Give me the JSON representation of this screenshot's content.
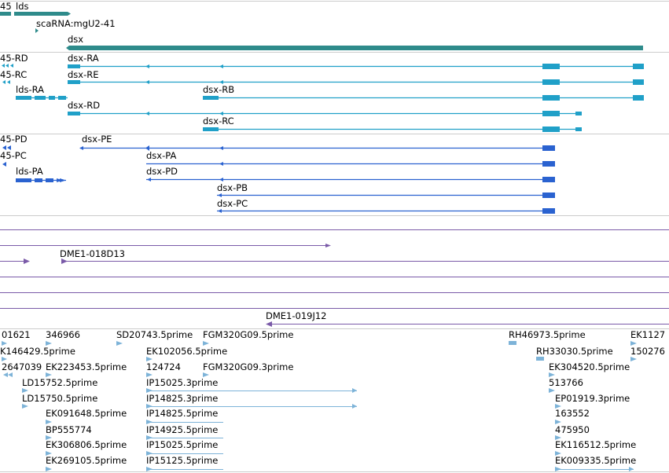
{
  "colors": {
    "gene": "#2e8b8b",
    "transcript": "#20a0c8",
    "protein": "#2a62d0",
    "clone": "#7a5aa8",
    "est": "#7db3d8",
    "divider": "#cccccc",
    "line": "#cfcfcf"
  },
  "tracks": {
    "genes": [
      {
        "label": "45",
        "kind": "gene"
      },
      {
        "label": "lds",
        "kind": "gene"
      },
      {
        "label": "scaRNA:mgU2-41",
        "kind": "gene"
      },
      {
        "label": "dsx",
        "kind": "gene"
      }
    ],
    "transcripts": [
      {
        "label": "45-RD"
      },
      {
        "label": "dsx-RA"
      },
      {
        "label": "45-RC"
      },
      {
        "label": "dsx-RE"
      },
      {
        "label": "lds-RA"
      },
      {
        "label": "dsx-RB"
      },
      {
        "label": "dsx-RD"
      },
      {
        "label": "dsx-RC"
      }
    ],
    "proteins": [
      {
        "label": "45-PD"
      },
      {
        "label": "dsx-PE"
      },
      {
        "label": "45-PC"
      },
      {
        "label": "dsx-PA"
      },
      {
        "label": "lds-PA"
      },
      {
        "label": "dsx-PD"
      },
      {
        "label": "dsx-PB"
      },
      {
        "label": "dsx-PC"
      }
    ],
    "clones": [
      {
        "label": "DME1-018D13"
      },
      {
        "label": "DME1-019J12"
      }
    ],
    "ests": [
      {
        "label": "01621"
      },
      {
        "label": "346966"
      },
      {
        "label": "SD20743.5prime"
      },
      {
        "label": "FGM320G09.5prime"
      },
      {
        "label": "RH46973.5prime"
      },
      {
        "label": "EK1127"
      },
      {
        "label": "K146429.5prime"
      },
      {
        "label": "EK102056.5prime"
      },
      {
        "label": "RH33030.5prime"
      },
      {
        "label": "150276"
      },
      {
        "label": "2647039"
      },
      {
        "label": "EK223453.5prime"
      },
      {
        "label": "124724"
      },
      {
        "label": "FGM320G09.3prime"
      },
      {
        "label": "EK304520.5prime"
      },
      {
        "label": "LD15752.5prime"
      },
      {
        "label": "IP15025.3prime"
      },
      {
        "label": "513766"
      },
      {
        "label": "LD15750.5prime"
      },
      {
        "label": "IP14825.3prime"
      },
      {
        "label": "EP01919.3prime"
      },
      {
        "label": "EK091648.5prime"
      },
      {
        "label": "IP14825.5prime"
      },
      {
        "label": "163552"
      },
      {
        "label": "BP555774"
      },
      {
        "label": "IP14925.5prime"
      },
      {
        "label": "475950"
      },
      {
        "label": "EK306806.5prime"
      },
      {
        "label": "IP15025.5prime"
      },
      {
        "label": "EK116512.5prime"
      },
      {
        "label": "EK269105.5prime"
      },
      {
        "label": "IP15125.5prime"
      },
      {
        "label": "EK009335.5prime"
      }
    ]
  }
}
